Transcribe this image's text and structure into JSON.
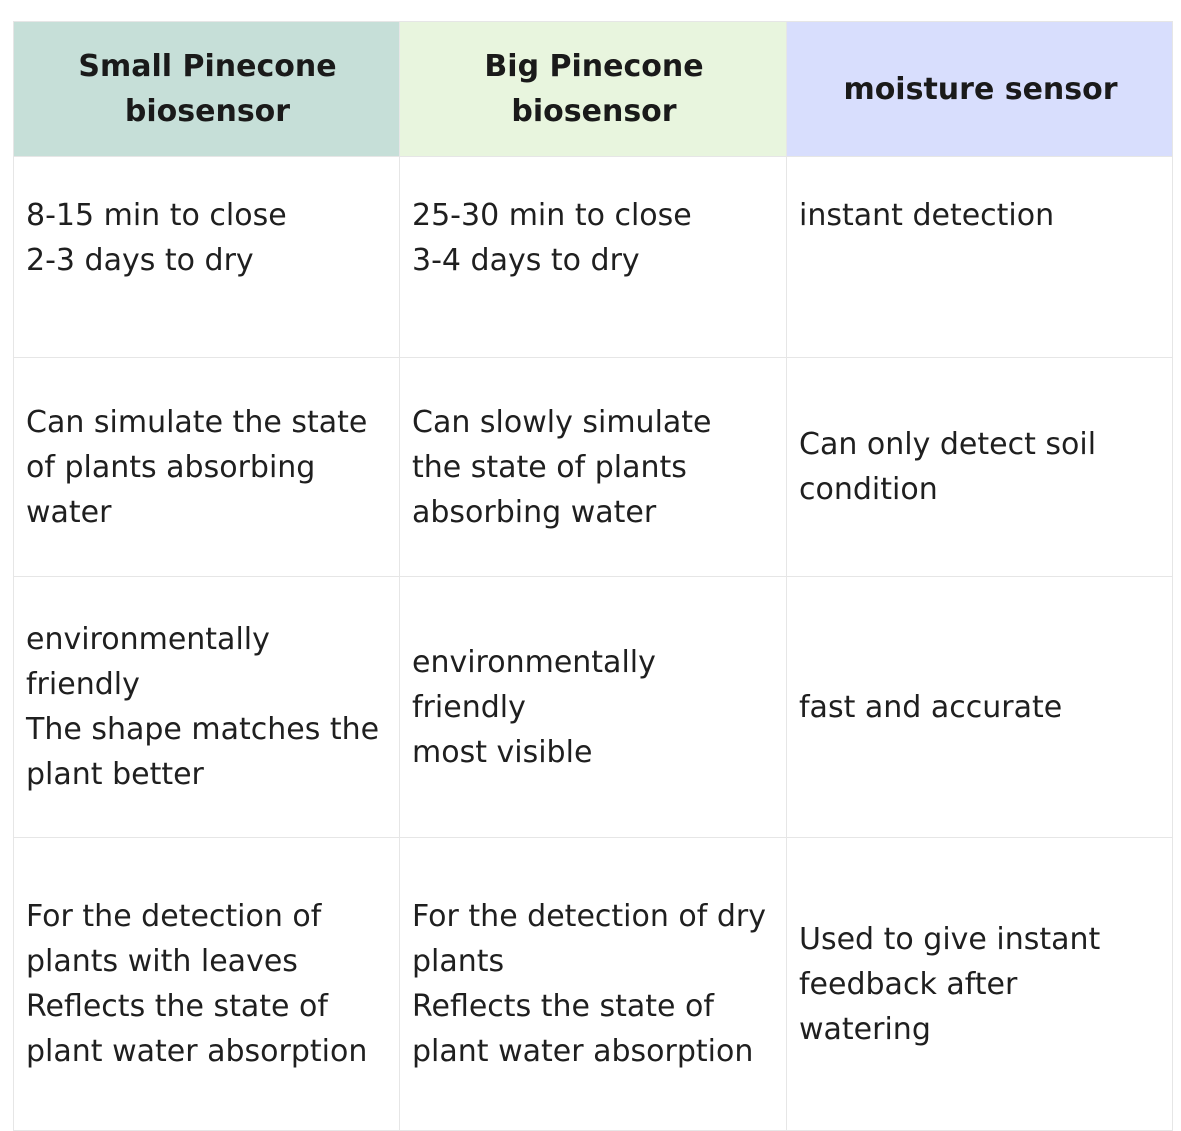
{
  "table": {
    "headers": [
      "Small Pinecone\nbiosensor",
      "Big Pinecone\nbiosensor",
      "moisture sensor"
    ],
    "rows": [
      [
        "8-15 min to close\n2-3 days to dry",
        "25-30 min to close\n3-4 days to dry",
        "instant detection"
      ],
      [
        "Can simulate the state\nof plants absorbing\nwater",
        "Can slowly simulate\nthe state of plants\nabsorbing water",
        "Can only detect soil\ncondition"
      ],
      [
        "environmentally\nfriendly\nThe shape matches the\nplant better",
        "environmentally\nfriendly\nmost visible",
        "fast and accurate"
      ],
      [
        "For the detection of\nplants with leaves\nReflects the state of\nplant water absorption",
        "For the detection of dry\nplants\nReflects the state of\nplant water absorption",
        "Used to give instant\nfeedback after\nwatering"
      ]
    ]
  },
  "colors": {
    "header_small": "#c6dfd8",
    "header_big": "#e8f5de",
    "header_moisture": "#d8defd",
    "border": "#e6e6e6"
  }
}
